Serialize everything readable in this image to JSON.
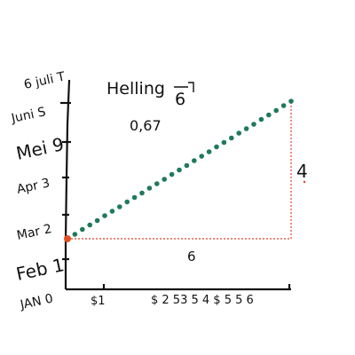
{
  "chart_data": {
    "type": "scatter",
    "title": "Helling",
    "title_fraction": "6",
    "slope_value": "0,67",
    "rise_label": "4",
    "run_label": "6",
    "y_ticks": [
      "JAN 0",
      "Feb 1",
      "Mar 2",
      "Apr 3",
      "Mei 9",
      "Juni S",
      "6 juli T"
    ],
    "x_ticks": [
      "$1",
      "$ 2 53 5 4 $ 5 5 6"
    ],
    "series": [
      {
        "marker": "dot",
        "x": [
          0.0,
          0.2,
          0.4,
          0.6,
          0.8,
          1.0,
          1.2,
          1.4,
          1.6,
          1.8,
          2.0,
          2.2,
          2.4,
          2.6,
          2.8,
          3.0,
          3.2,
          3.4,
          3.6,
          3.8,
          4.0,
          4.2,
          4.4,
          4.6,
          4.8,
          5.0,
          5.2,
          5.4,
          5.6,
          5.8,
          6.0
        ],
        "y": [
          1.0,
          1.13,
          1.27,
          1.4,
          1.53,
          1.67,
          1.8,
          1.93,
          2.07,
          2.2,
          2.33,
          2.47,
          2.6,
          2.73,
          2.87,
          3.0,
          3.13,
          3.27,
          3.4,
          3.53,
          3.67,
          3.8,
          3.93,
          4.07,
          4.2,
          4.33,
          4.47,
          4.6,
          4.73,
          4.87,
          5.0
        ]
      }
    ],
    "start_point": {
      "x": 0,
      "y": 1
    },
    "xlim": [
      0,
      6
    ],
    "ylim": [
      0,
      6
    ],
    "colors": {
      "points": "#1e7a5a",
      "guide": "#e0402a",
      "start": "#e05020",
      "axis": "#111111"
    }
  }
}
